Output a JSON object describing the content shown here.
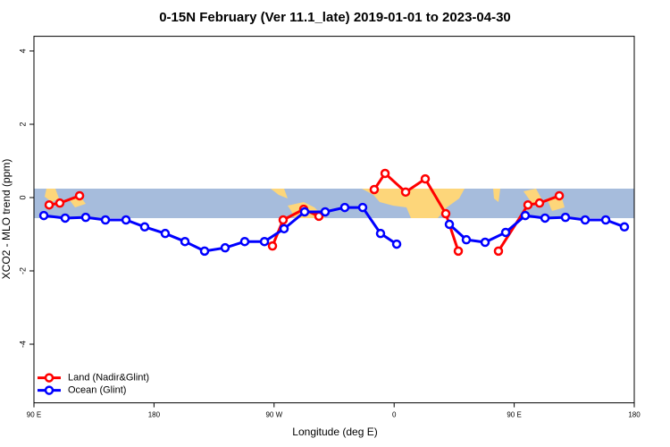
{
  "chart_data": {
    "type": "line",
    "title": "0-15N February (Ver 11.1_late)   2019-01-01 to 2023-04-30",
    "x_label": "Longitude (deg E)",
    "y_label": "XCO2 - MLO trend (ppm)",
    "xlim": [
      90,
      540
    ],
    "ylim": [
      -5.6,
      4.4
    ],
    "xticks": [
      {
        "value": 90,
        "label": "90 E"
      },
      180,
      {
        "value": 270,
        "label": "90 W"
      },
      {
        "value": 360,
        "label": "0"
      },
      {
        "value": 450,
        "label": "90 E"
      },
      {
        "value": 540,
        "label": "180"
      }
    ],
    "yticks": [
      4,
      2,
      0,
      -2,
      -4
    ],
    "legend": "bottom-left",
    "series": [
      {
        "name": "Land (Nadir&Glint)",
        "color": "#ff0000",
        "x": [
          101.4,
          109.4,
          124.2,
          null,
          268.8,
          276.8,
          292.2,
          303.6,
          null,
          345.1,
          353.2,
          368.6,
          383.3,
          398.7,
          408.1,
          null,
          438.2,
          460.3,
          469.0,
          483.8
        ],
        "values": [
          -0.2,
          -0.15,
          0.05,
          null,
          -1.32,
          -0.61,
          -0.32,
          -0.51,
          null,
          0.22,
          0.66,
          0.15,
          0.51,
          -0.44,
          -1.46,
          null,
          -1.46,
          -0.2,
          -0.15,
          0.05
        ]
      },
      {
        "name": "Ocean (Glint)",
        "color": "#0000ff",
        "x": [
          97.4,
          113.4,
          128.8,
          143.6,
          159.0,
          173.0,
          188.4,
          203.2,
          217.9,
          233.3,
          248.0,
          262.8,
          277.5,
          292.9,
          308.3,
          323.0,
          336.4,
          349.8,
          361.9,
          null,
          401.4,
          414.1,
          428.2,
          443.6,
          458.3,
          473.1,
          488.4,
          503.2,
          518.6,
          532.6
        ],
        "values": [
          -0.49,
          -0.56,
          -0.54,
          -0.61,
          -0.61,
          -0.8,
          -0.98,
          -1.2,
          -1.46,
          -1.37,
          -1.2,
          -1.2,
          -0.85,
          -0.39,
          -0.39,
          -0.27,
          -0.27,
          -0.98,
          -1.27,
          null,
          -0.73,
          -1.15,
          -1.22,
          -0.95,
          -0.49,
          -0.56,
          -0.54,
          -0.61,
          -0.61,
          -0.8
        ]
      }
    ]
  }
}
